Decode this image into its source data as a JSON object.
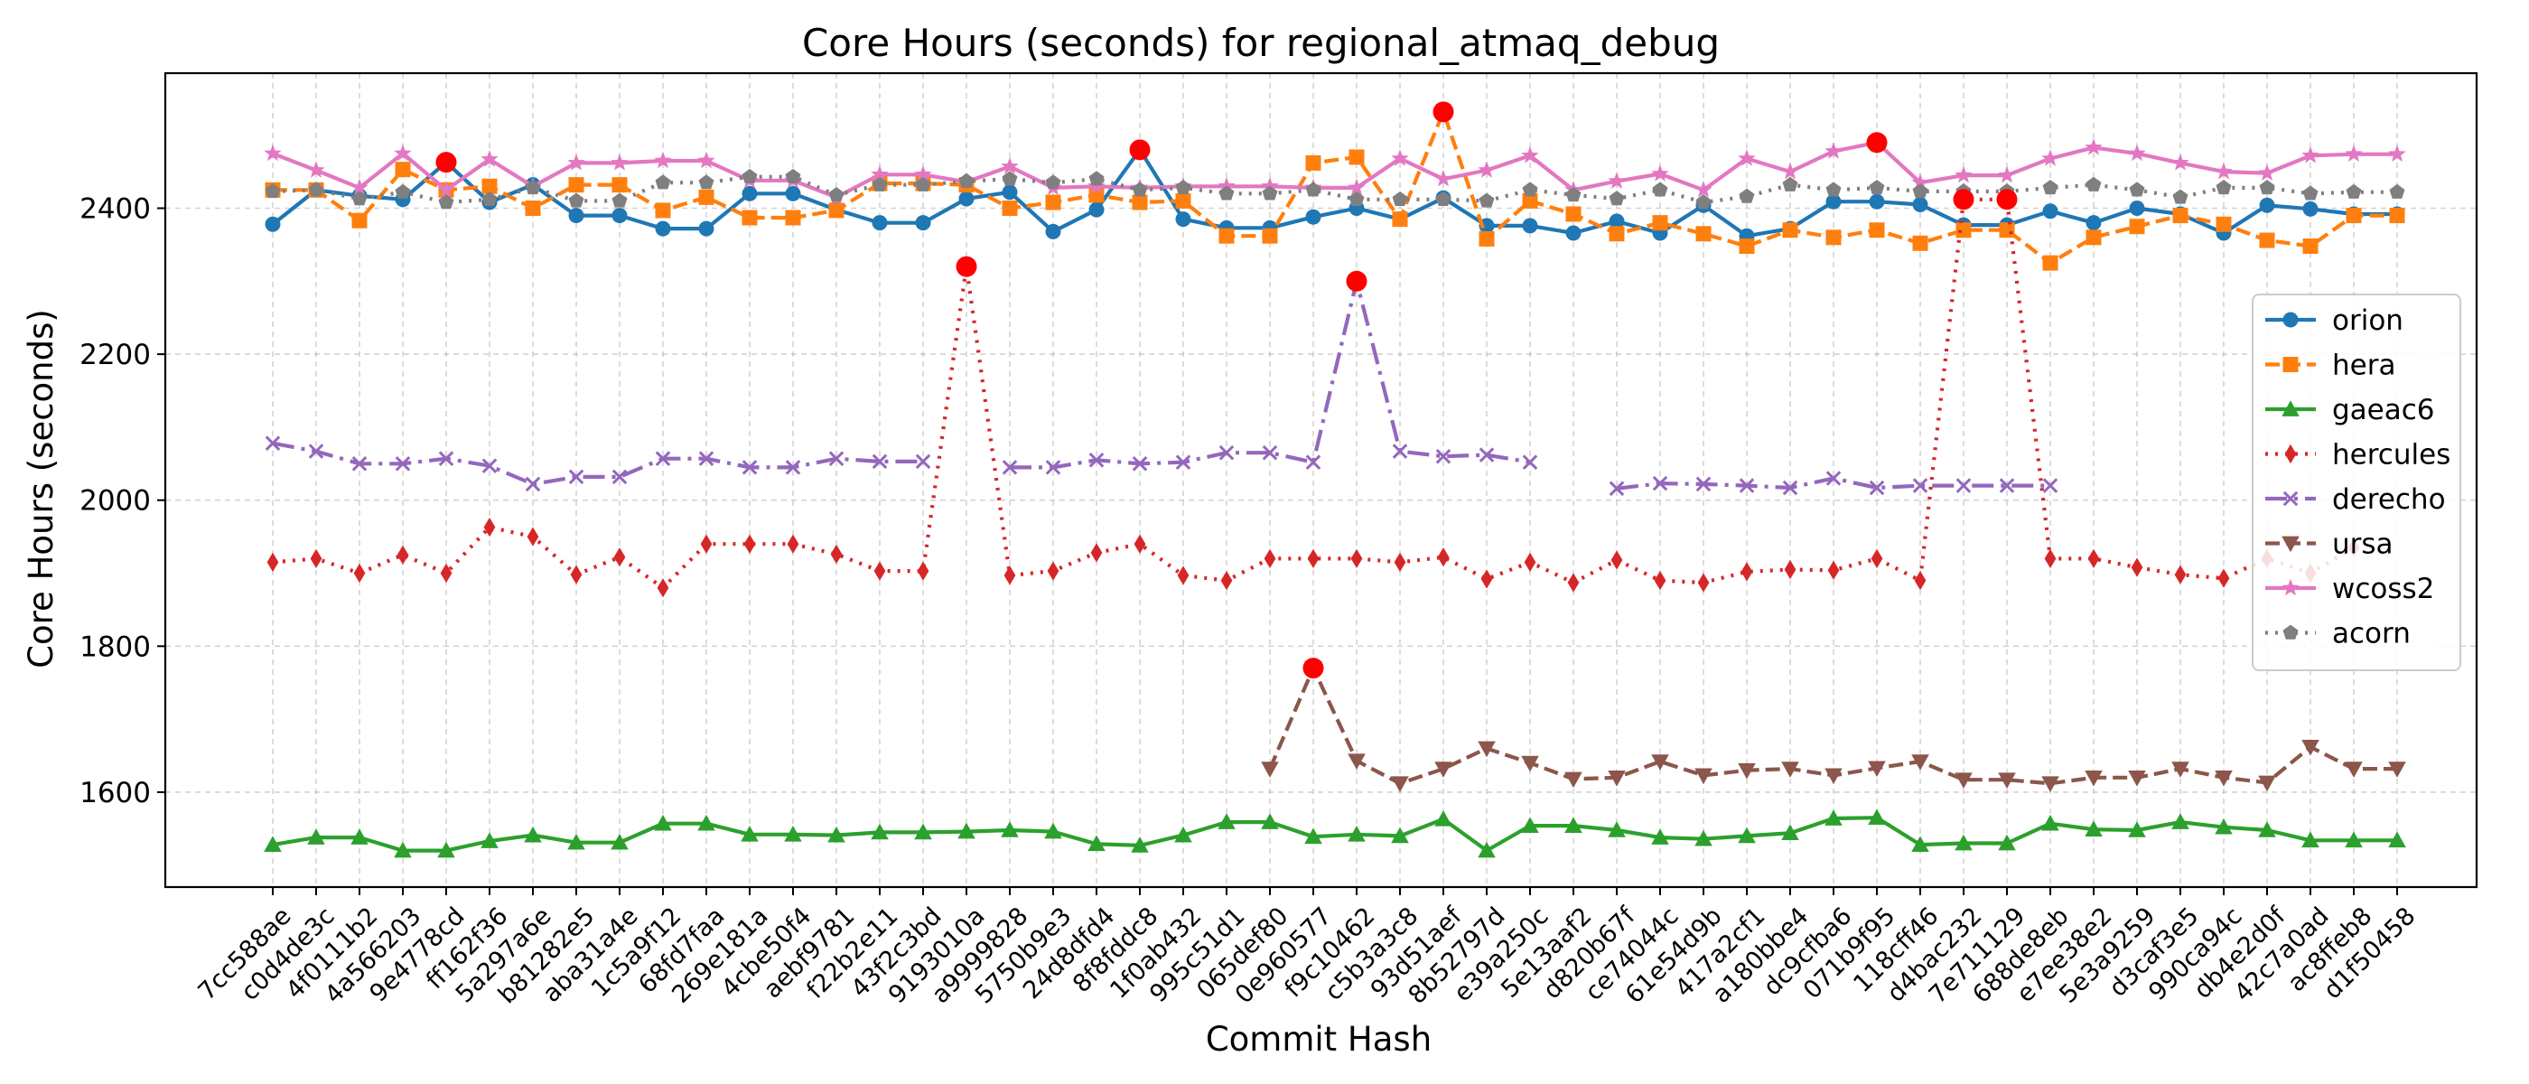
{
  "chart_data": {
    "type": "line",
    "title": "Core Hours (seconds) for regional_atmaq_debug",
    "xlabel": "Commit Hash",
    "ylabel": "Core Hours (seconds)",
    "ylim": [
      1470,
      2585
    ],
    "yticks": [
      1600,
      1800,
      2000,
      2200,
      2400
    ],
    "grid": true,
    "legend_position": "right",
    "categories": [
      "7cc588ae",
      "c0d4de3c",
      "4f0111b2",
      "4a566203",
      "9e4778cd",
      "ff162f36",
      "5a297a6e",
      "b81282e5",
      "aba31a4e",
      "1c5a9f12",
      "68fd7faa",
      "269e181a",
      "4cbe50f4",
      "aebf9781",
      "f22b2e11",
      "43f2c3bd",
      "9193010a",
      "a9999828",
      "5750b9e3",
      "24d8dfd4",
      "8f8fddc8",
      "1f0ab432",
      "995c51d1",
      "065def80",
      "0e960577",
      "f9c10462",
      "c5b3a3c8",
      "93d51aef",
      "8b52797d",
      "e39a250c",
      "5e13aaf2",
      "d820b67f",
      "ce74044c",
      "61e54d9b",
      "417a2cf1",
      "a180bbe4",
      "dc9cfba6",
      "071b9f95",
      "118cff46",
      "d4bac232",
      "7e711129",
      "688de8eb",
      "e7ee38e2",
      "5e3a9259",
      "d3caf3e5",
      "990ca94c",
      "db4e2d0f",
      "42c7a0ad",
      "ac8ffeb8",
      "d1f50458"
    ],
    "series": [
      {
        "name": "orion",
        "color": "#1f77b4",
        "dash": "",
        "marker": "circle",
        "values": [
          2378,
          2425,
          2417,
          2412,
          2463,
          2408,
          2432,
          2390,
          2390,
          2372,
          2372,
          2420,
          2420,
          2398,
          2380,
          2380,
          2413,
          2422,
          2368,
          2398,
          2480,
          2385,
          2373,
          2373,
          2388,
          2400,
          2385,
          2414,
          2376,
          2376,
          2366,
          2382,
          2366,
          2404,
          2362,
          2372,
          2409,
          2409,
          2405,
          2377,
          2377,
          2396,
          2380,
          2400,
          2392,
          2366,
          2404,
          2399,
          2392,
          2392
        ],
        "highlights": [
          4,
          20
        ]
      },
      {
        "name": "hera",
        "color": "#ff7f0e",
        "dash": "16 7",
        "marker": "square",
        "values": [
          2425,
          2425,
          2383,
          2453,
          2425,
          2430,
          2400,
          2432,
          2432,
          2397,
          2415,
          2387,
          2387,
          2397,
          2434,
          2434,
          2432,
          2400,
          2408,
          2418,
          2408,
          2410,
          2362,
          2362,
          2462,
          2470,
          2385,
          2532,
          2358,
          2410,
          2392,
          2365,
          2380,
          2365,
          2348,
          2370,
          2360,
          2370,
          2352,
          2370,
          2370,
          2325,
          2360,
          2375,
          2390,
          2378,
          2356,
          2348,
          2390,
          2390
        ],
        "highlights": [
          27
        ]
      },
      {
        "name": "gaeac6",
        "color": "#2ca02c",
        "dash": "",
        "marker": "triangle-up",
        "values": [
          1528,
          1538,
          1538,
          1520,
          1520,
          1533,
          1541,
          1531,
          1531,
          1557,
          1557,
          1542,
          1542,
          1541,
          1545,
          1545,
          1546,
          1548,
          1546,
          1529,
          1527,
          1541,
          1559,
          1559,
          1539,
          1542,
          1540,
          1563,
          1520,
          1554,
          1554,
          1548,
          1538,
          1536,
          1540,
          1544,
          1564,
          1565,
          1528,
          1530,
          1530,
          1557,
          1549,
          1548,
          1559,
          1552,
          1548,
          1534,
          1534,
          1534
        ],
        "highlights": []
      },
      {
        "name": "hercules",
        "color": "#d62728",
        "dash": "3 8",
        "marker": "diamond",
        "values": [
          1915,
          1920,
          1900,
          1925,
          1900,
          1963,
          1950,
          1898,
          1922,
          1880,
          1940,
          1940,
          1940,
          1926,
          1903,
          1903,
          2320,
          1897,
          1903,
          1928,
          1940,
          1897,
          1890,
          1920,
          1920,
          1920,
          1915,
          1922,
          1892,
          1915,
          1887,
          1918,
          1890,
          1887,
          1902,
          1905,
          1904,
          1920,
          1890,
          2412,
          2412,
          1920,
          1920,
          1908,
          1898,
          1893,
          1920,
          1900,
          1935,
          null
        ],
        "highlights": [
          16,
          39,
          40
        ]
      },
      {
        "name": "derecho",
        "color": "#9467bd",
        "dash": "24 8 4 8",
        "marker": "x",
        "values": [
          2078,
          2067,
          2050,
          2050,
          2057,
          2047,
          2022,
          2032,
          2032,
          2057,
          2057,
          2045,
          2045,
          2057,
          2053,
          2053,
          null,
          2045,
          2045,
          2055,
          2050,
          2052,
          2065,
          2065,
          2052,
          2300,
          2067,
          2060,
          2062,
          2052,
          null,
          2016,
          2023,
          2022,
          2020,
          2017,
          2030,
          2017,
          2020,
          2020,
          2020,
          2020,
          null,
          null,
          null,
          null,
          null,
          null,
          null,
          null
        ],
        "highlights": [
          25
        ]
      },
      {
        "name": "ursa",
        "color": "#8c564b",
        "dash": "16 7",
        "marker": "triangle-down",
        "values": [
          null,
          null,
          null,
          null,
          null,
          null,
          null,
          null,
          null,
          null,
          null,
          null,
          null,
          null,
          null,
          null,
          null,
          null,
          null,
          null,
          null,
          null,
          null,
          1632,
          1770,
          1643,
          1612,
          1632,
          1660,
          1640,
          1618,
          1620,
          1642,
          1623,
          1630,
          1632,
          1623,
          1633,
          1642,
          1617,
          1617,
          1612,
          1620,
          1620,
          1632,
          1620,
          1613,
          1662,
          1632,
          1632
        ],
        "highlights": [
          24
        ]
      },
      {
        "name": "wcoss2",
        "color": "#e377c2",
        "dash": "",
        "marker": "star",
        "values": [
          2475,
          2452,
          2428,
          2475,
          2425,
          2467,
          2430,
          2462,
          2462,
          2465,
          2465,
          2438,
          2438,
          2415,
          2446,
          2446,
          2436,
          2457,
          2428,
          2430,
          2428,
          2430,
          2430,
          2430,
          2428,
          2428,
          2468,
          2440,
          2452,
          2472,
          2425,
          2437,
          2447,
          2425,
          2468,
          2450,
          2478,
          2490,
          2435,
          2445,
          2445,
          2468,
          2483,
          2475,
          2462,
          2450,
          2448,
          2472,
          2474,
          2474
        ],
        "highlights": [
          37
        ]
      },
      {
        "name": "acorn",
        "color": "#7f7f7f",
        "dash": "3 8",
        "marker": "pentagon",
        "values": [
          2423,
          2425,
          2413,
          2422,
          2408,
          2412,
          2428,
          2410,
          2410,
          2435,
          2435,
          2443,
          2443,
          2418,
          2432,
          2432,
          2437,
          2440,
          2435,
          2440,
          2425,
          2428,
          2420,
          2420,
          2425,
          2412,
          2412,
          2412,
          2410,
          2425,
          2418,
          2413,
          2425,
          2408,
          2416,
          2432,
          2425,
          2428,
          2423,
          2423,
          2423,
          2428,
          2432,
          2425,
          2415,
          2428,
          2428,
          2420,
          2422,
          2422
        ],
        "highlights": []
      }
    ]
  }
}
